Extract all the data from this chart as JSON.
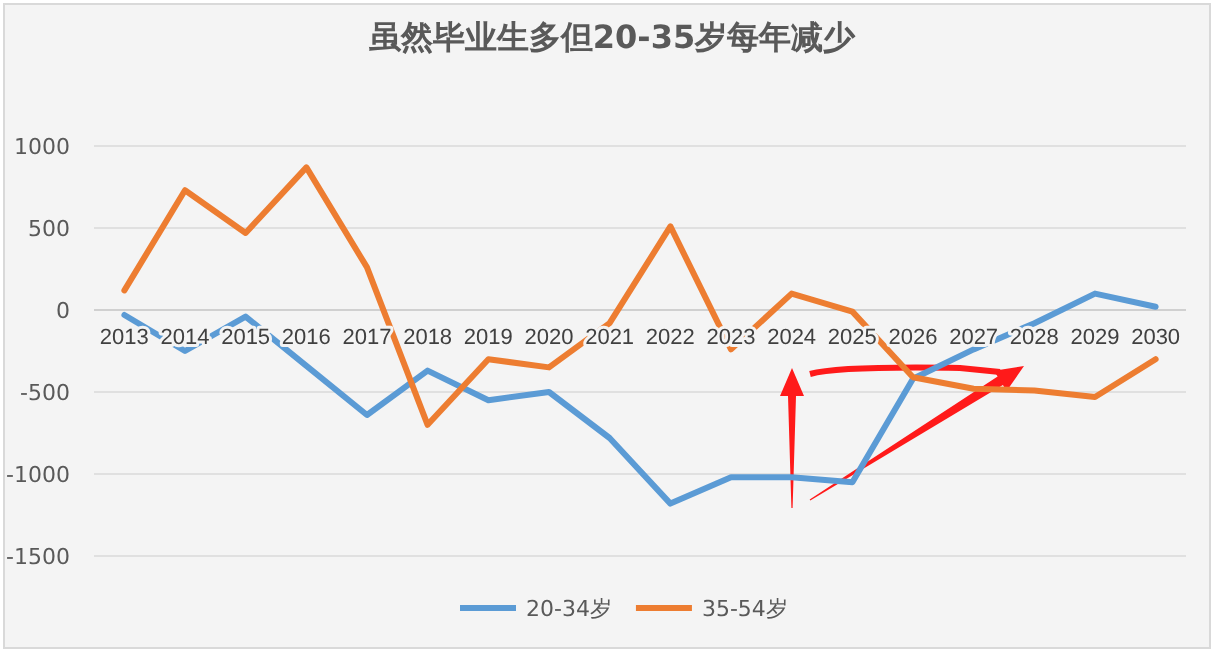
{
  "chart_data": {
    "type": "line",
    "title": "虽然毕业生多但20-35岁每年减少",
    "categories": [
      "2013",
      "2014",
      "2015",
      "2016",
      "2017",
      "2018",
      "2019",
      "2020",
      "2021",
      "2022",
      "2023",
      "2024",
      "2025",
      "2026",
      "2027",
      "2028",
      "2029",
      "2030"
    ],
    "series": [
      {
        "name": "20-34岁",
        "color": "#5b9bd5",
        "values": [
          -30,
          -250,
          -40,
          -340,
          -640,
          -370,
          -550,
          -500,
          -780,
          -1180,
          -1020,
          -1020,
          -1050,
          -420,
          -240,
          -80,
          100,
          20
        ]
      },
      {
        "name": "35-54岁",
        "color": "#ed7d31",
        "values": [
          120,
          730,
          470,
          870,
          260,
          -700,
          -300,
          -350,
          -80,
          510,
          -240,
          100,
          -10,
          -410,
          -480,
          -490,
          -530,
          -300
        ]
      }
    ],
    "ylim": [
      -1500,
      1000
    ],
    "yticks": [
      -1500,
      -1000,
      -500,
      0,
      500,
      1000
    ],
    "grid": "y",
    "legend": "bottom",
    "marker": "none",
    "line_style": "solid"
  }
}
